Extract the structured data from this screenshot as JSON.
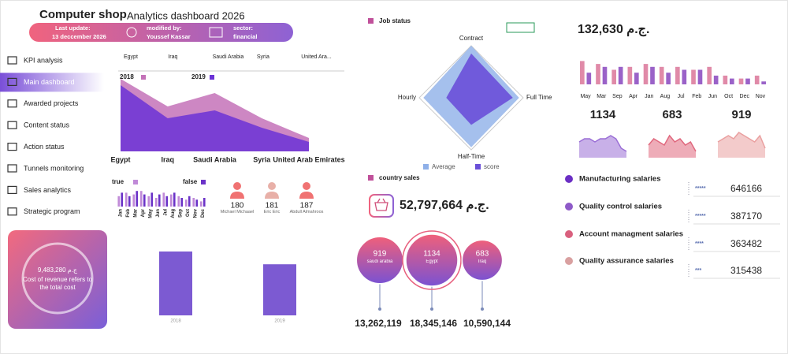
{
  "header": {
    "title": "Computer shop",
    "subtitle": "Analytics dashboard 2026",
    "fields": [
      {
        "label": "Last update:",
        "value": "13 deccember 2026"
      },
      {
        "label": "modified by:",
        "value": "Youssef Kassar"
      },
      {
        "label": "sector:",
        "value": "financial"
      }
    ]
  },
  "nav": {
    "items": [
      "KPI analysis",
      "Main dashboard",
      "Awarded projects",
      "Content status",
      "Action status",
      "Tunnels monitoring",
      "Sales analytics",
      "Strategic program"
    ],
    "active": 1
  },
  "cost_card": {
    "amount": "ج.م 9,483,280",
    "text": "Cost of revenue refers to the total cost"
  },
  "people": [
    {
      "count": 180,
      "name": "Michael Michaael",
      "color": "#f07272"
    },
    {
      "count": 181,
      "name": "Eric Eric",
      "color": "#e8b0a8"
    },
    {
      "count": 187,
      "name": "Abdull Almahroos",
      "color": "#f07272"
    }
  ],
  "salaries": [
    {
      "label": "Manufacturing salaries",
      "stars": "*****",
      "value": 646166,
      "color": "#6b2fc4"
    },
    {
      "label": "Quality control salaries",
      "stars": "*****",
      "value": 387170,
      "color": "#8e5ac8"
    },
    {
      "label": "Account managment salaries",
      "stars": "****",
      "value": 363482,
      "color": "#d9607e"
    },
    {
      "label": "Quality assurance salaries",
      "stars": "***",
      "value": 315438,
      "color": "#d9a0a0"
    }
  ],
  "chart_data": [
    {
      "type": "area",
      "categories": [
        "Egypt",
        "Iraq",
        "Saudi Arabia",
        "Syria",
        "United Arab Emirates"
      ],
      "top_labels": [
        "Egypt",
        "Iraq",
        "Saudi Arabia",
        "Syria",
        "United Ara..."
      ],
      "series": [
        {
          "name": "2018",
          "color": "#c472b8",
          "values": [
            92,
            57,
            74,
            42,
            17
          ]
        },
        {
          "name": "2019",
          "color": "#6b33d6",
          "values": [
            84,
            42,
            52,
            30,
            12
          ]
        }
      ],
      "ylim": [
        0,
        100
      ]
    },
    {
      "type": "bar",
      "categories": [
        "Jan",
        "Feb",
        "Mar",
        "Apr",
        "May",
        "Jun",
        "Jul",
        "Aug",
        "Sep",
        "Oct",
        "Nov",
        "Dec"
      ],
      "series": [
        {
          "name": "true",
          "color": "#c08ad8",
          "values": [
            6,
            8,
            7,
            9,
            6,
            5,
            8,
            7,
            6,
            4,
            5,
            3
          ]
        },
        {
          "name": "false",
          "color": "#6b33c8",
          "values": [
            8,
            6,
            9,
            7,
            8,
            7,
            6,
            8,
            5,
            6,
            4,
            5
          ]
        }
      ],
      "ylim": [
        0,
        10
      ]
    },
    {
      "type": "bar",
      "categories": [
        "2018",
        "2019"
      ],
      "values": [
        90,
        72
      ],
      "color": "#7c5ad2",
      "ylim": [
        0,
        100
      ]
    },
    {
      "type": "radar",
      "title": "Job status",
      "categories": [
        "Contract",
        "Full Time",
        "Half-Time",
        "Hourly"
      ],
      "series": [
        {
          "name": "Average",
          "color": "#8fb0e8",
          "values": [
            100,
            92,
            95,
            92
          ]
        },
        {
          "name": "score",
          "color": "#6a4fd8",
          "values": [
            85,
            80,
            52,
            48
          ]
        }
      ],
      "rlim": [
        0,
        100
      ]
    },
    {
      "type": "bubble",
      "title": "country sales",
      "total": "52,797,664 ج.م.",
      "categories": [
        "saudi arabia",
        "Egypt",
        "Iraq"
      ],
      "values": [
        919,
        1134,
        683
      ],
      "totals": [
        "13,262,119",
        "18,345,146",
        "10,590,144"
      ]
    },
    {
      "type": "bar",
      "title": "132,630 ج.م.",
      "categories": [
        "May",
        "Mar",
        "Sep",
        "Apr",
        "Jan",
        "Aug",
        "Jul",
        "Feb",
        "Jun",
        "Oct",
        "Dec",
        "Nov"
      ],
      "series": [
        {
          "color": "#e08aa8",
          "values": [
            8,
            7,
            5,
            6,
            7,
            6,
            6,
            5,
            6,
            3,
            2,
            3
          ]
        },
        {
          "color": "#9a62c8",
          "values": [
            4,
            6,
            6,
            4,
            6,
            4,
            5,
            5,
            3,
            2,
            2,
            1
          ]
        }
      ],
      "ylim": [
        0,
        10
      ]
    },
    {
      "type": "area",
      "title": 1134,
      "color": "#9b6fd6",
      "values": [
        5,
        6,
        6,
        5,
        6,
        6,
        7,
        6,
        3,
        2
      ],
      "ylim": [
        0,
        10
      ]
    },
    {
      "type": "area",
      "title": 683,
      "color": "#e0687e",
      "values": [
        4,
        6,
        5,
        4,
        7,
        5,
        6,
        4,
        5,
        2
      ],
      "ylim": [
        0,
        10
      ]
    },
    {
      "type": "area",
      "title": 919,
      "color": "#eaa0a0",
      "values": [
        5,
        6,
        7,
        6,
        8,
        7,
        6,
        5,
        7,
        3
      ],
      "ylim": [
        0,
        10
      ]
    }
  ]
}
